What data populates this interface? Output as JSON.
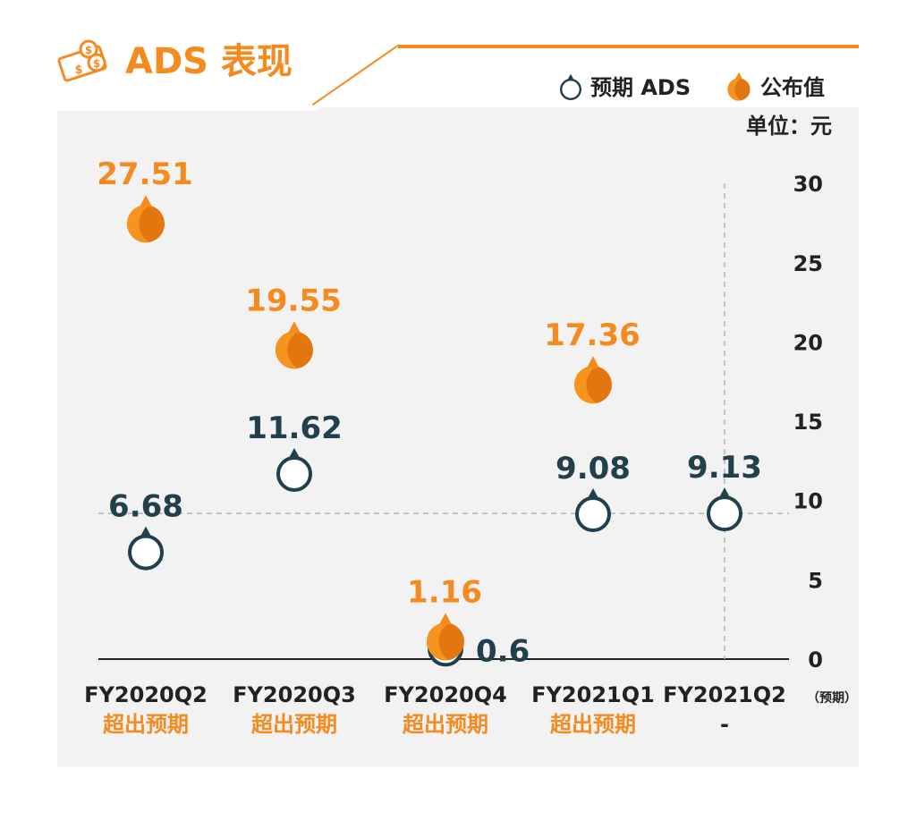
{
  "title": "ADS 表现",
  "legend": {
    "expected_label": "预期 ADS",
    "actual_label": "公布值",
    "unit": "单位：元"
  },
  "colors": {
    "accent": "#f58a1f",
    "expected": "#213f4d",
    "panel": "#f2f2f2"
  },
  "icons": {
    "title_icon": "money-icon",
    "expected_marker": "ring-pin-icon",
    "actual_marker": "drop-pin-icon"
  },
  "chart_data": {
    "type": "scatter",
    "categories": [
      "FY2020Q2",
      "FY2020Q3",
      "FY2020Q4",
      "FY2021Q1",
      "FY2021Q2"
    ],
    "category_suffix": [
      "",
      "",
      "",
      "",
      "（预期）"
    ],
    "notes": [
      "超出预期",
      "超出预期",
      "超出预期",
      "超出预期",
      "-"
    ],
    "series": [
      {
        "name": "预期 ADS",
        "values": [
          6.68,
          11.62,
          0.6,
          9.08,
          9.13
        ],
        "labels": [
          "6.68",
          "11.62",
          "0.6",
          "9.08",
          "9.13"
        ]
      },
      {
        "name": "公布值",
        "values": [
          27.51,
          19.55,
          1.16,
          17.36,
          null
        ],
        "labels": [
          "27.51",
          "19.55",
          "1.16",
          "17.36",
          ""
        ]
      }
    ],
    "ylim": [
      0,
      30
    ],
    "yticks": [
      "0",
      "5",
      "10",
      "15",
      "20",
      "25",
      "30"
    ],
    "ytick_values": [
      0,
      5,
      10,
      15,
      20,
      25,
      30
    ],
    "reference_y": 9.13,
    "axis_position": "right"
  }
}
